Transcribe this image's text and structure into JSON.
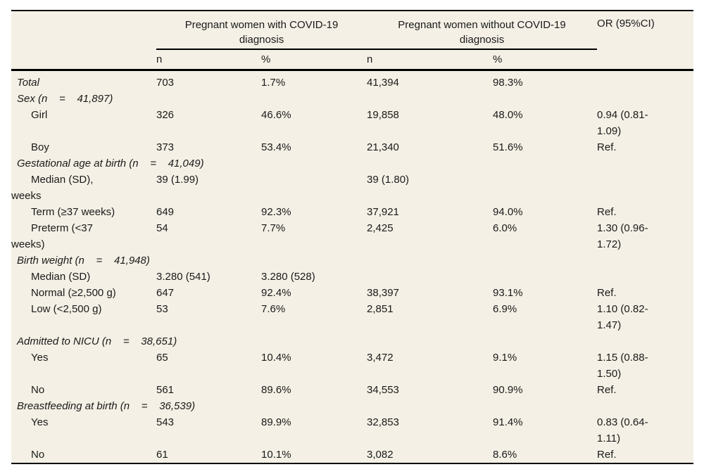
{
  "colors": {
    "table_background": "#f4f0e5",
    "rule_color": "#000000",
    "text_color": "#1a1a1a"
  },
  "header": {
    "group1": "Pregnant women with COVID-19\ndiagnosis",
    "group2": "Pregnant women without COVID-19\ndiagnosis",
    "or": "OR (95%CI)",
    "subheaders": [
      "n",
      "%",
      "n",
      "%"
    ]
  },
  "rows": [
    {
      "type": "total",
      "label": "Total",
      "values": [
        "703",
        "1.7%",
        "41,394",
        "98.3%",
        ""
      ]
    },
    {
      "type": "section",
      "label": "Sex (n    =    41,897)",
      "values": [
        "",
        "",
        "",
        "",
        ""
      ]
    },
    {
      "type": "item",
      "label": "Girl",
      "values": [
        "326",
        "46.6%",
        "19,858",
        "48.0%",
        "0.94 (0.81-\n1.09)"
      ]
    },
    {
      "type": "item",
      "label": "Boy",
      "values": [
        "373",
        "53.4%",
        "21,340",
        "51.6%",
        "Ref."
      ]
    },
    {
      "type": "section",
      "label": "Gestational age at birth (n    =    41,049)",
      "values": [
        "",
        "",
        "",
        "",
        ""
      ]
    },
    {
      "type": "item",
      "label": "Median (SD),\nweeks",
      "values": [
        "39 (1.99)",
        "",
        "39 (1.80)",
        "",
        ""
      ]
    },
    {
      "type": "item",
      "label": "Term (≥37 weeks)",
      "values": [
        "649",
        "92.3%",
        "37,921",
        "94.0%",
        "Ref."
      ]
    },
    {
      "type": "item",
      "label": "Preterm (<37\nweeks)",
      "values": [
        "54",
        "7.7%",
        "2,425",
        "6.0%",
        "1.30 (0.96-\n1.72)"
      ]
    },
    {
      "type": "section",
      "label": "Birth weight (n    =    41,948)",
      "values": [
        "",
        "",
        "",
        "",
        ""
      ]
    },
    {
      "type": "item",
      "label": "Median (SD)",
      "values": [
        "3.280 (541)",
        "3.280 (528)",
        "",
        "",
        ""
      ]
    },
    {
      "type": "item",
      "label": "Normal (≥2,500 g)",
      "values": [
        "647",
        "92.4%",
        "38,397",
        "93.1%",
        "Ref."
      ]
    },
    {
      "type": "item",
      "label": "Low (<2,500 g)",
      "values": [
        "53",
        "7.6%",
        "2,851",
        "6.9%",
        "1.10 (0.82-\n1.47)"
      ]
    },
    {
      "type": "section",
      "label": "Admitted to NICU (n    =    38,651)",
      "values": [
        "",
        "",
        "",
        "",
        ""
      ]
    },
    {
      "type": "item",
      "label": "Yes",
      "values": [
        "65",
        "10.4%",
        "3,472",
        "9.1%",
        "1.15 (0.88-\n1.50)"
      ]
    },
    {
      "type": "item",
      "label": "No",
      "values": [
        "561",
        "89.6%",
        "34,553",
        "90.9%",
        "Ref."
      ]
    },
    {
      "type": "section",
      "label": "Breastfeeding at birth (n    =    36,539)",
      "values": [
        "",
        "",
        "",
        "",
        ""
      ]
    },
    {
      "type": "item",
      "label": "Yes",
      "values": [
        "543",
        "89.9%",
        "32,853",
        "91.4%",
        "0.83 (0.64-\n1.11)"
      ]
    },
    {
      "type": "item",
      "label": "No",
      "values": [
        "61",
        "10.1%",
        "3,082",
        "8.6%",
        "Ref."
      ]
    }
  ]
}
